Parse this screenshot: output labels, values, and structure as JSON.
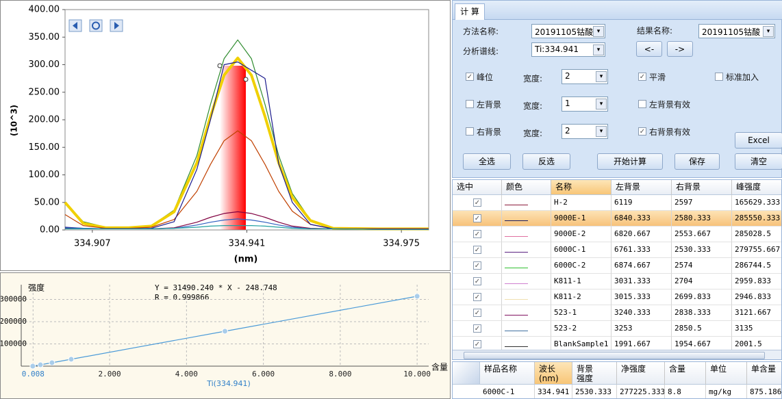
{
  "chart_data": [
    {
      "type": "line",
      "ylabel": "(10^3)",
      "xlabel": "(nm)",
      "x": [
        334.901,
        334.905,
        334.91,
        334.915,
        334.92,
        334.925,
        334.93,
        334.933,
        334.936,
        334.939,
        334.942,
        334.945,
        334.948,
        334.951,
        334.955,
        334.96,
        334.97,
        334.981
      ],
      "series": [
        {
          "color": "#2e8b2e",
          "values": [
            50,
            15,
            5,
            5,
            8,
            36,
            135,
            228,
            311,
            345,
            311,
            228,
            135,
            66,
            18,
            4,
            3,
            3
          ]
        },
        {
          "color": "#f0d000",
          "values": [
            50,
            12,
            4,
            4,
            7,
            33,
            122,
            206,
            281,
            312,
            281,
            206,
            122,
            59,
            17,
            3,
            2,
            2
          ]
        },
        {
          "color": "#c04000",
          "values": [
            28,
            8,
            3,
            3,
            5,
            19,
            70,
            119,
            162,
            180,
            162,
            119,
            70,
            34,
            10,
            2,
            2,
            2
          ]
        },
        {
          "color": "#1a1a8c",
          "values": [
            5,
            3,
            2,
            2,
            3,
            15,
            110,
            200,
            300,
            305,
            290,
            275,
            120,
            50,
            10,
            2,
            1,
            1
          ]
        },
        {
          "color": "#800040",
          "values": [
            3,
            2,
            2,
            2,
            2,
            4,
            14,
            23,
            30,
            33,
            30,
            23,
            14,
            7,
            3,
            2,
            2,
            2
          ]
        },
        {
          "color": "#3060c0",
          "values": [
            4,
            3,
            2,
            2,
            2,
            3,
            9,
            14,
            18,
            20,
            18,
            14,
            9,
            5,
            2,
            2,
            1,
            1
          ]
        },
        {
          "color": "#20a0a0",
          "values": [
            2,
            2,
            2,
            2,
            2,
            3,
            5,
            7,
            8,
            8,
            8,
            7,
            5,
            3,
            2,
            2,
            1,
            1
          ]
        }
      ],
      "xlim": [
        334.901,
        334.981
      ],
      "xticks": [
        334.907,
        334.941,
        334.975
      ],
      "ylim": [
        0,
        400
      ],
      "yticks": [
        {
          "value": 0,
          "label": "0.00"
        },
        {
          "value": 50,
          "label": "50.00"
        },
        {
          "value": 100,
          "label": "100.00"
        },
        {
          "value": 150,
          "label": "150.00"
        },
        {
          "value": 200,
          "label": "200.00"
        },
        {
          "value": 250,
          "label": "250.00"
        },
        {
          "value": 300,
          "label": "300.00"
        },
        {
          "value": 350,
          "label": "350.00"
        },
        {
          "value": 400,
          "label": "400.00"
        }
      ]
    },
    {
      "type": "scatter",
      "ylabel": "强度",
      "xlabel": "Ti(334.941)",
      "x_unit": "含量",
      "annotations": [
        "Y = 31490.240 * X - 248.748",
        "R = 0.999866"
      ],
      "color": "#4a9ad8",
      "x": [
        0,
        0.2,
        0.5,
        1,
        5,
        10
      ],
      "values": [
        0,
        6000,
        15500,
        31000,
        157000,
        314000
      ],
      "xlim": [
        -0.3,
        10.3
      ],
      "xticks": [
        {
          "value": 0.008,
          "label": "0.008"
        },
        {
          "value": 2,
          "label": "2.000"
        },
        {
          "value": 4,
          "label": "4.000"
        },
        {
          "value": 6,
          "label": "6.000"
        },
        {
          "value": 8,
          "label": "8.000"
        },
        {
          "value": 10,
          "label": "10.000"
        }
      ],
      "ylim": [
        0,
        366000
      ],
      "yticks": [
        100000,
        200000,
        300000
      ],
      "grid": true
    }
  ],
  "tab": "计 算",
  "form": {
    "method_label": "方法名称:",
    "method_value": "20191105钴酸",
    "result_label": "结果名称:",
    "result_value": "20191105钴酸",
    "line_label": "分析谱线:",
    "line_value": "Ti:334.941",
    "prev_button": "<-",
    "next_button": "->",
    "options": [
      {
        "label": "峰位",
        "checked": true,
        "width_label": "宽度:",
        "width": "2",
        "flag_label": "平滑",
        "flag_checked": true,
        "extra_label": "标准加入",
        "extra_checked": false
      },
      {
        "label": "左背景",
        "checked": false,
        "width_label": "宽度:",
        "width": "1",
        "flag_label": "左背景有效",
        "flag_checked": false
      },
      {
        "label": "右背景",
        "checked": false,
        "width_label": "宽度:",
        "width": "2",
        "flag_label": "右背景有效",
        "flag_checked": true
      }
    ],
    "excel_button": "Excel",
    "buttons": [
      "全选",
      "反选",
      "开始计算",
      "保存",
      "清空"
    ]
  },
  "table": {
    "columns": [
      "选中",
      "颜色",
      "名称",
      "左背景",
      "右背景",
      "峰强度"
    ],
    "selected_row": 1,
    "rows": [
      {
        "checked": true,
        "color": "#8b1a3a",
        "cells": [
          "H-2",
          "6119",
          "2597",
          "165629.333"
        ]
      },
      {
        "checked": true,
        "color": "#1a1a5c",
        "cells": [
          "9000E-1",
          "6840.333",
          "2580.333",
          "285550.333"
        ]
      },
      {
        "checked": true,
        "color": "#e070a0",
        "cells": [
          "9000E-2",
          "6820.667",
          "2553.667",
          "285028.5"
        ]
      },
      {
        "checked": true,
        "color": "#5a2080",
        "cells": [
          "6000C-1",
          "6761.333",
          "2530.333",
          "279755.667"
        ]
      },
      {
        "checked": true,
        "color": "#30c030",
        "cells": [
          "6000C-2",
          "6874.667",
          "2574",
          "286744.5"
        ]
      },
      {
        "checked": true,
        "color": "#d080d0",
        "cells": [
          "K811-1",
          "3031.333",
          "2704",
          "2959.833"
        ]
      },
      {
        "checked": true,
        "color": "#f0e0b0",
        "cells": [
          "K811-2",
          "3015.333",
          "2699.833",
          "2946.833"
        ]
      },
      {
        "checked": true,
        "color": "#801060",
        "cells": [
          "523-1",
          "3240.333",
          "2838.333",
          "3121.667"
        ]
      },
      {
        "checked": true,
        "color": "#4070a0",
        "cells": [
          "523-2",
          "3253",
          "2850.5",
          "3135"
        ]
      },
      {
        "checked": true,
        "color": "#303030",
        "cells": [
          "BlankSample1",
          "1991.667",
          "1954.667",
          "2001.5"
        ]
      }
    ]
  },
  "result_table": {
    "columns": [
      "样品名称",
      "波长\n(nm)",
      "背景\n强度",
      "净强度",
      "含量",
      "单位",
      "单含量"
    ],
    "rows": [
      [
        "6000C-1",
        "334.941",
        "2530.333",
        "277225.333",
        "8.8",
        "mg/kg",
        "875.186"
      ]
    ]
  }
}
